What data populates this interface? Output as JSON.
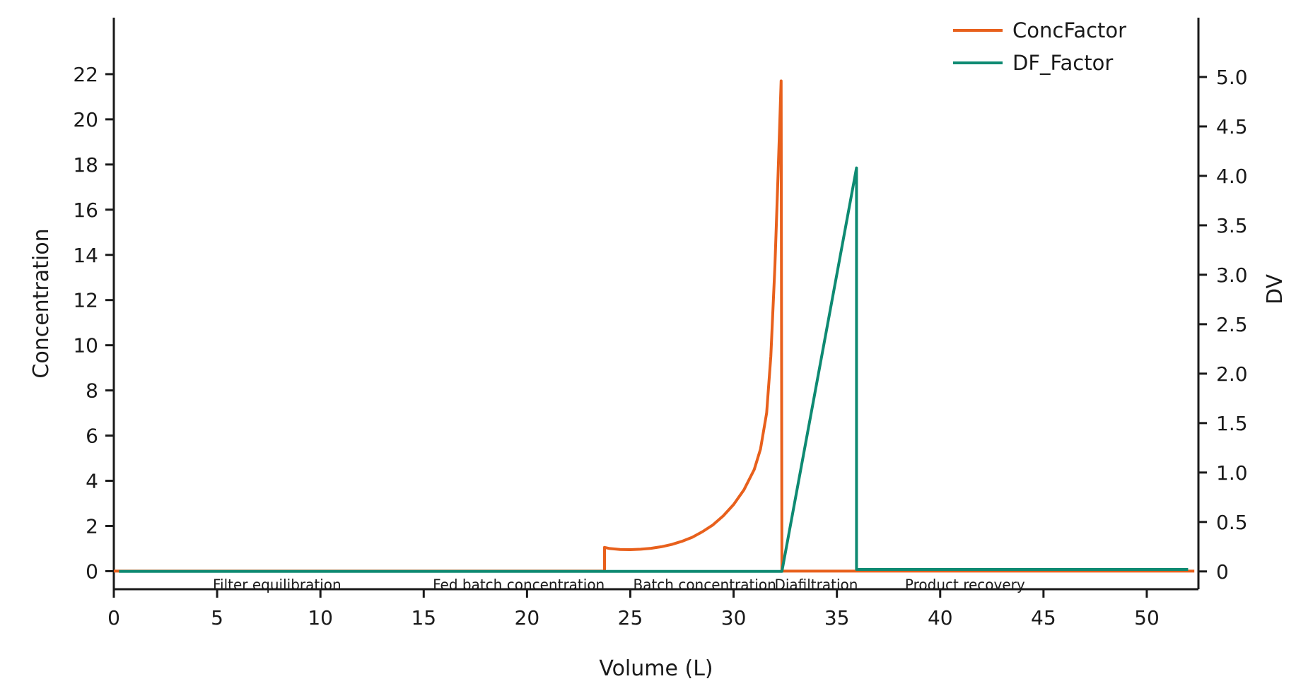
{
  "chart_data": {
    "type": "line",
    "xlabel": "Volume (L)",
    "ylabel": "Concentration",
    "y2label": "DV",
    "xlim": [
      0,
      52.5
    ],
    "ylim": [
      -0.8,
      24.5
    ],
    "y2lim": [
      -0.18,
      5.6
    ],
    "xticks": [
      0,
      5,
      10,
      15,
      20,
      25,
      30,
      35,
      40,
      45,
      50
    ],
    "yticks": [
      0,
      2,
      4,
      6,
      8,
      10,
      12,
      14,
      16,
      18,
      20,
      22
    ],
    "y2ticks": [
      "0",
      "0.5",
      "1.0",
      "1.5",
      "2.0",
      "2.5",
      "3.0",
      "3.5",
      "4.0",
      "4.5",
      "5.0"
    ],
    "legend_position": "top-right",
    "series": [
      {
        "name": "ConcFactor",
        "axis": "left",
        "color": "#E8601C",
        "x": [
          0.0,
          0.25,
          23.75,
          23.75,
          24.0,
          24.5,
          25.0,
          25.5,
          26.0,
          26.5,
          27.0,
          27.5,
          28.0,
          28.5,
          29.0,
          29.5,
          30.0,
          30.5,
          31.0,
          31.3,
          31.6,
          31.8,
          32.0,
          32.15,
          32.3,
          32.32,
          32.34,
          33.0,
          35.95,
          40.0,
          50.0,
          52.3
        ],
        "y": [
          0.0,
          0.0,
          0.0,
          1.05,
          1.0,
          0.96,
          0.95,
          0.97,
          1.01,
          1.08,
          1.18,
          1.32,
          1.5,
          1.75,
          2.05,
          2.45,
          2.95,
          3.6,
          4.5,
          5.4,
          7.0,
          9.5,
          13.5,
          17.5,
          21.7,
          10.0,
          0.0,
          0.0,
          0.0,
          0.0,
          0.0,
          0.0
        ]
      },
      {
        "name": "DF_Factor",
        "axis": "right",
        "color": "#0E8A72",
        "x": [
          0.25,
          32.34,
          35.95,
          35.95,
          52.0
        ],
        "y": [
          0.0,
          0.0,
          4.08,
          0.02,
          0.02
        ]
      }
    ],
    "annotations": [
      {
        "text": "Filter equilibration",
        "x": 7.9
      },
      {
        "text": "Fed batch concentration",
        "x": 19.6
      },
      {
        "text": "Batch concentration",
        "x": 28.6
      },
      {
        "text": "Diafiltration",
        "x": 34.0
      },
      {
        "text": "Product recovery",
        "x": 41.2
      }
    ]
  }
}
